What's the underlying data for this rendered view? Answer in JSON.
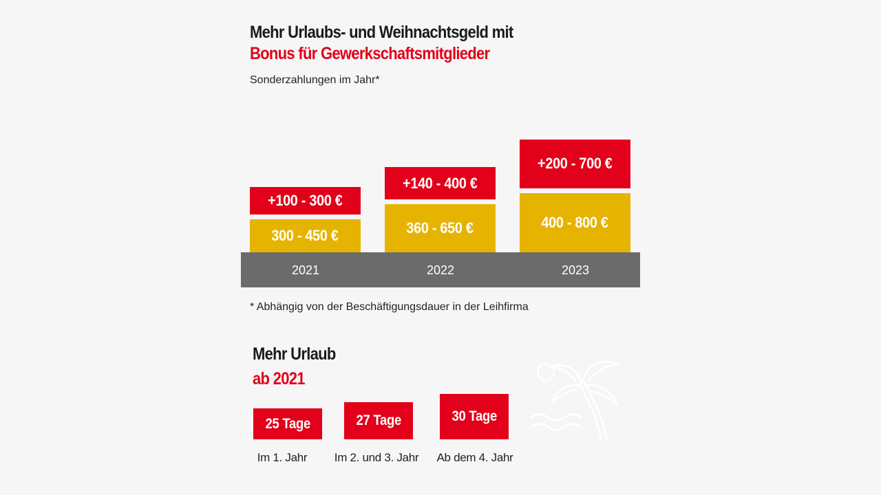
{
  "title_line1": "Mehr Urlaubs- und Weihnachtsgeld mit",
  "title_line2": "Bonus für Gewerkschaftsmitglieder",
  "subtitle": "Sonderzahlungen im Jahr*",
  "footnote": "* Abhängig von der Beschäftigungsdauer in der Leihfirma",
  "colors": {
    "red": "#e2001a",
    "yellow": "#e6b400",
    "axis": "#6b6b6b"
  },
  "chart_data": {
    "type": "bar",
    "stacked": true,
    "title": "Mehr Urlaubs- und Weihnachtsgeld mit Bonus für Gewerkschaftsmitglieder",
    "ylabel": "Sonderzahlungen im Jahr*",
    "categories": [
      "2021",
      "2022",
      "2023"
    ],
    "series": [
      {
        "name": "Sonderzahlung",
        "color": "#e6b400",
        "labels": [
          "300 - 450 €",
          "360 - 650 €",
          "400 - 800 €"
        ],
        "range_min": [
          300,
          360,
          400
        ],
        "range_max": [
          450,
          650,
          800
        ]
      },
      {
        "name": "Bonus für Gewerkschaftsmitglieder",
        "color": "#e2001a",
        "labels": [
          "+100 - 300 €",
          "+140 - 400 €",
          "+200 - 700 €"
        ],
        "range_min": [
          100,
          140,
          200
        ],
        "range_max": [
          300,
          400,
          700
        ]
      }
    ]
  },
  "leave": {
    "title_line1": "Mehr Urlaub",
    "title_line2": "ab 2021",
    "items": [
      {
        "value": "25 Tage",
        "label": "Im 1. Jahr"
      },
      {
        "value": "27 Tage",
        "label": "Im 2. und 3. Jahr"
      },
      {
        "value": "30 Tage",
        "label": "Ab dem 4. Jahr"
      }
    ],
    "icon": "palm-beach-icon"
  }
}
